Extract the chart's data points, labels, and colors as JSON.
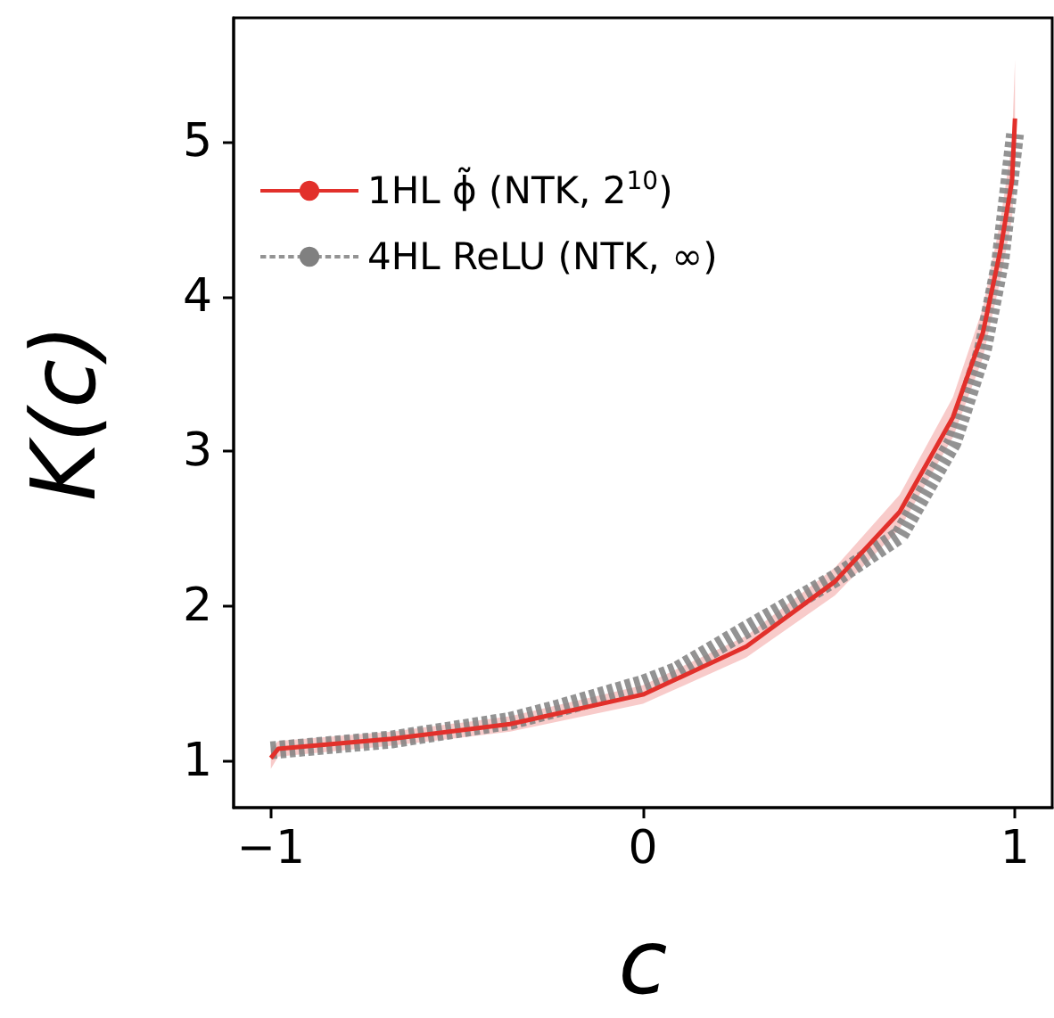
{
  "chart_data": {
    "type": "line",
    "xlabel": "c",
    "ylabel": "K(c)",
    "xlim": [
      -1.1,
      1.1
    ],
    "ylim": [
      0.7,
      5.8
    ],
    "xticks": [
      -1,
      0,
      1
    ],
    "yticks": [
      1,
      2,
      3,
      4,
      5
    ],
    "grid": false,
    "legend": "top left",
    "marker": "none",
    "series": [
      {
        "name": "1HL ϕ̃ (NTK, 2$^{10}$)",
        "color": "#e2302b",
        "line_style": "solid",
        "x": [
          -1,
          -0.98,
          -0.675,
          -0.357,
          0,
          0.278,
          0.516,
          0.69,
          0.833,
          0.913,
          0.96,
          0.992,
          1
        ],
        "values": [
          1.02,
          1.08,
          1.145,
          1.24,
          1.43,
          1.74,
          2.16,
          2.61,
          3.22,
          3.76,
          4.29,
          4.75,
          5.15
        ],
        "lower": [
          0.95,
          1.03,
          1.1,
          1.19,
          1.37,
          1.67,
          2.07,
          2.5,
          3.09,
          3.6,
          4.1,
          4.5,
          4.8
        ],
        "upper": [
          1.08,
          1.13,
          1.19,
          1.29,
          1.49,
          1.81,
          2.25,
          2.72,
          3.35,
          3.92,
          4.48,
          5.0,
          5.53
        ]
      },
      {
        "name": "4HL ReLU (NTK, ∞)",
        "color": "#808080",
        "line_style": "dashed",
        "x": [
          -1,
          -0.675,
          -0.357,
          -0.23,
          0,
          0.087,
          0.278,
          0.516,
          0.69,
          0.833,
          0.913,
          0.96,
          1
        ],
        "values": [
          1.07,
          1.14,
          1.26,
          1.34,
          1.5,
          1.58,
          1.85,
          2.18,
          2.46,
          3.06,
          3.65,
          4.22,
          5.05
        ]
      }
    ]
  }
}
